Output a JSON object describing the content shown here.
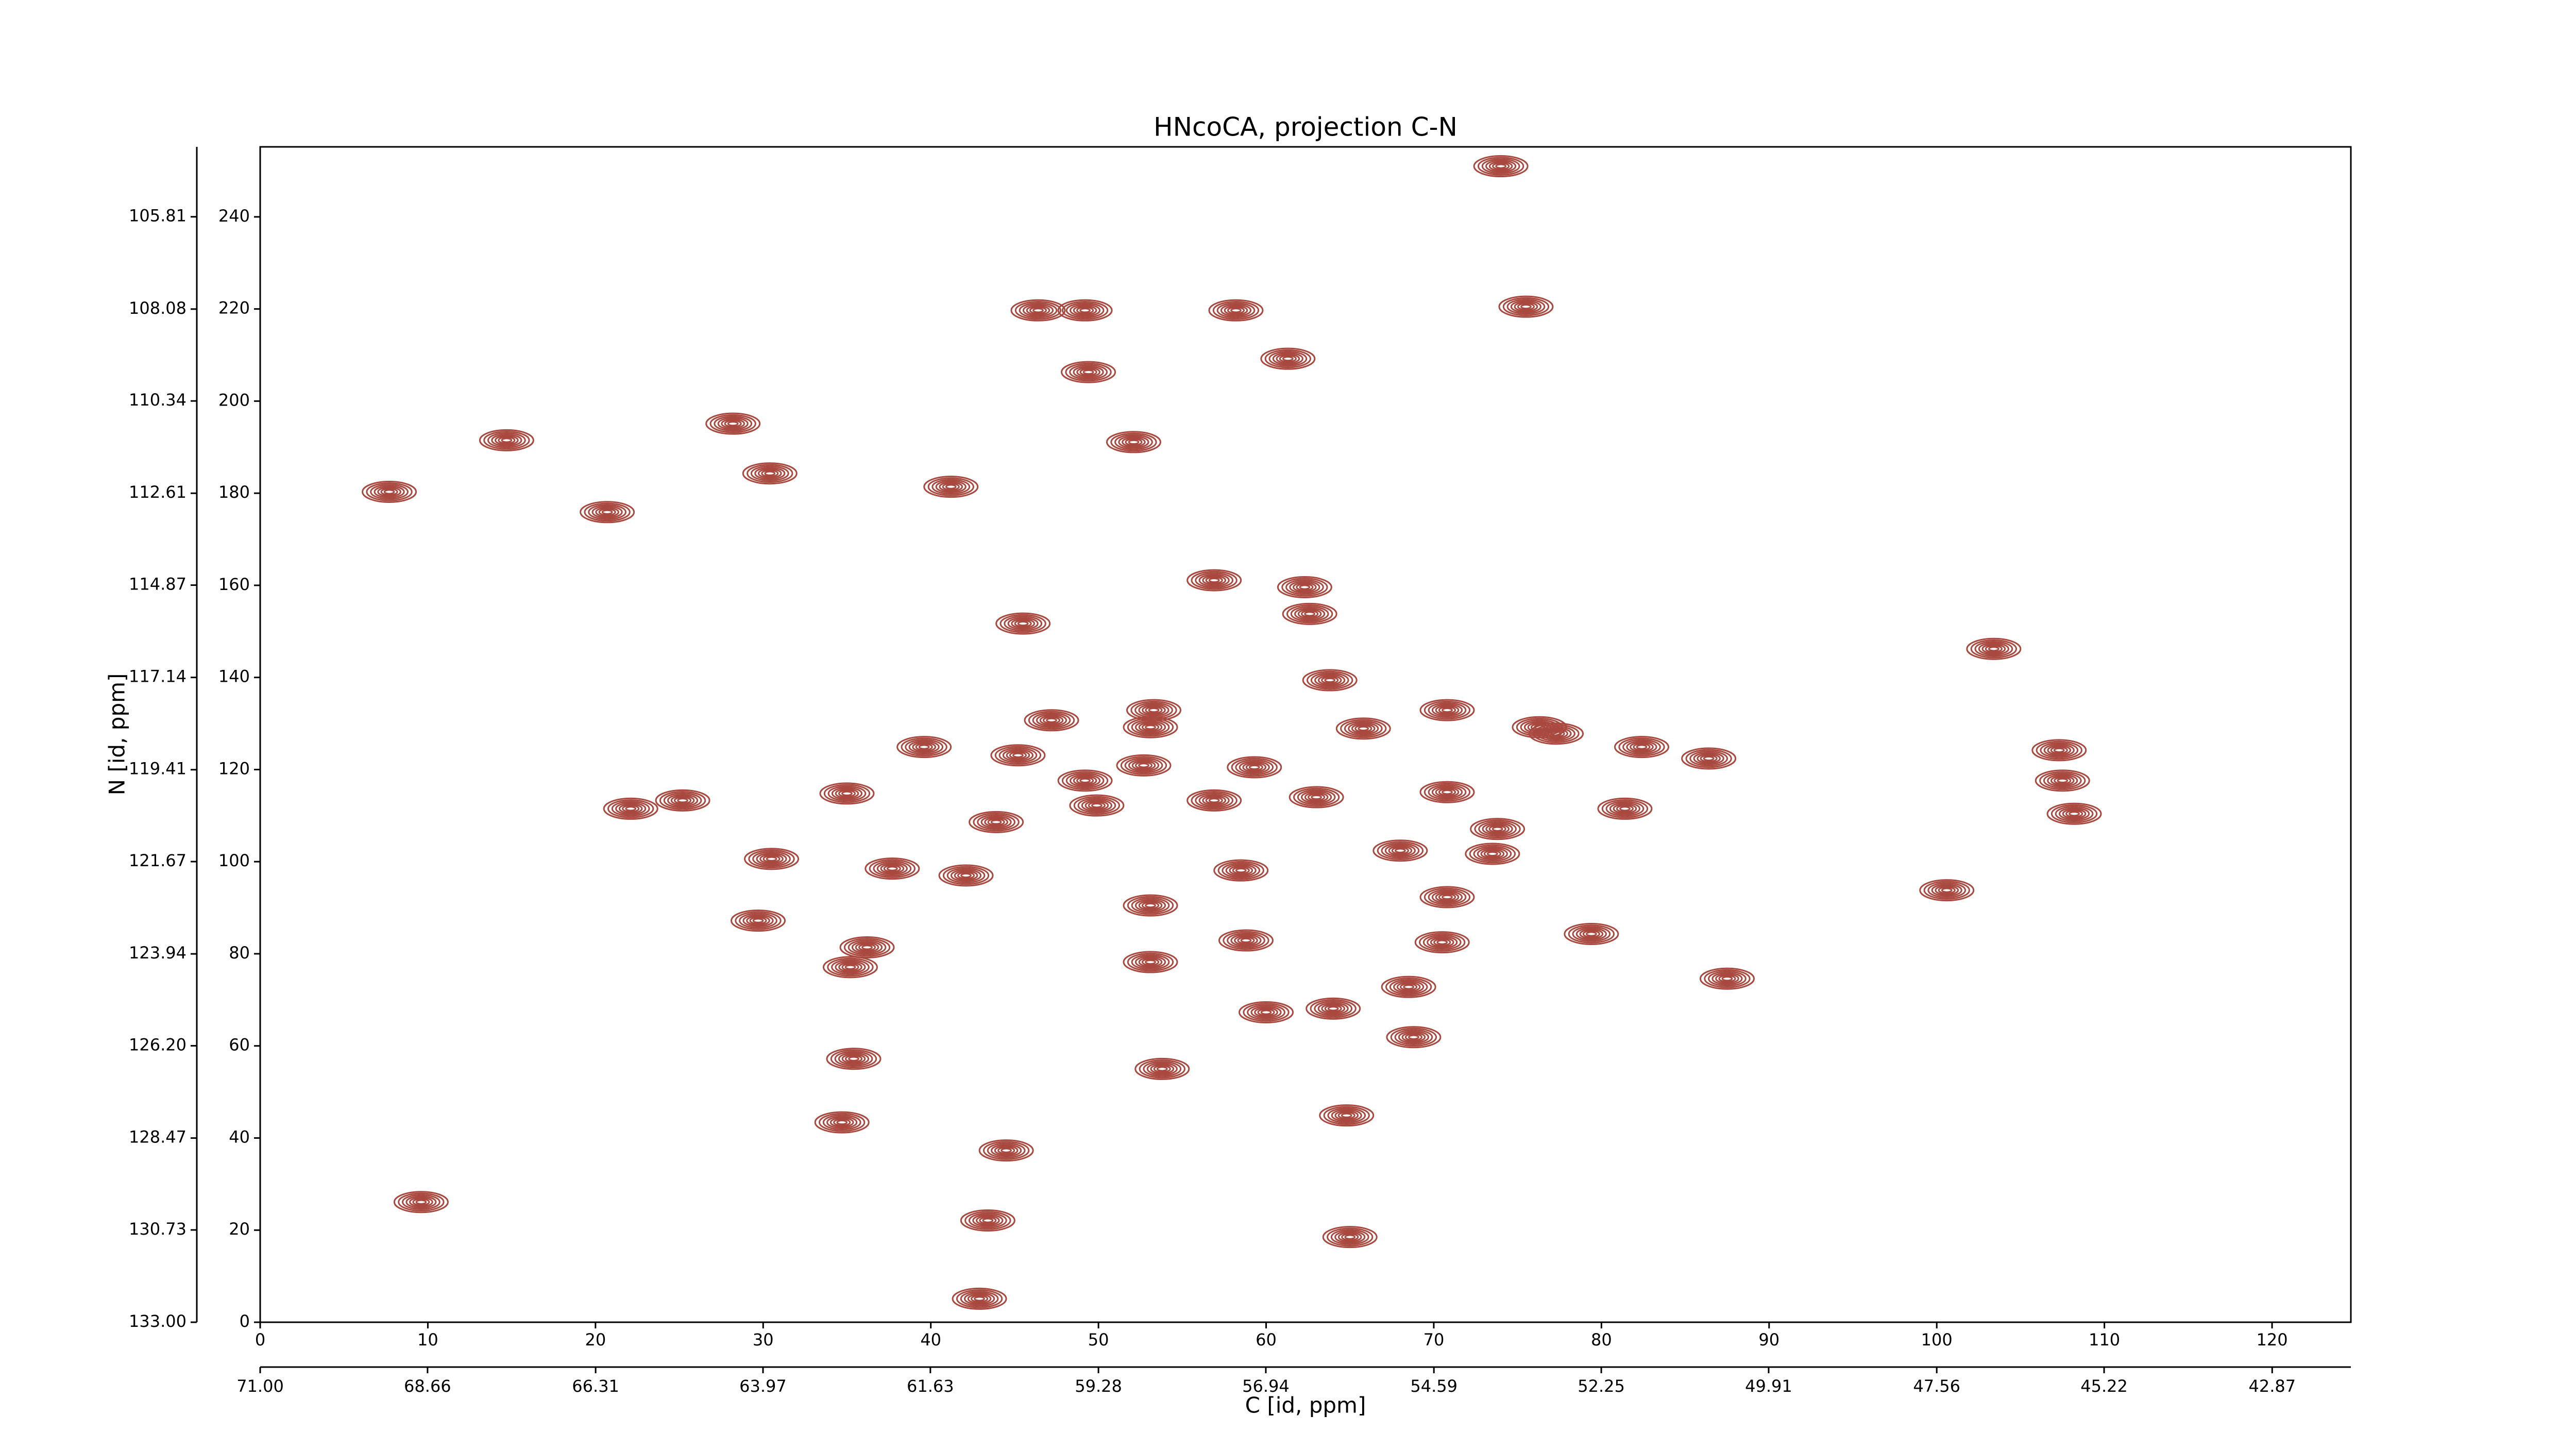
{
  "chart_data": {
    "type": "contour",
    "title": "HNcoCA, projection C-N",
    "xlabel": "C [id, ppm]",
    "ylabel": "N [id, ppm]",
    "xlim": [
      0,
      124.7
    ],
    "xticks": [
      0,
      10,
      20,
      30,
      40,
      50,
      60,
      70,
      80,
      90,
      100,
      110,
      120
    ],
    "ylim": [
      0,
      255.2
    ],
    "yticks": [
      0,
      20,
      40,
      60,
      80,
      100,
      120,
      140,
      160,
      180,
      200,
      220,
      240
    ],
    "x2lim": [
      71.0,
      41.77
    ],
    "x2ticks": [
      {
        "value": 71.0,
        "label": "71.00"
      },
      68.66,
      66.31,
      63.97,
      61.63,
      59.28,
      56.94,
      54.59,
      52.25,
      49.91,
      47.56,
      45.22,
      42.87
    ],
    "y2lim": [
      133.0,
      104.09
    ],
    "y2ticks": [
      {
        "value": 133.0,
        "label": "133.00"
      },
      130.73,
      128.47,
      {
        "value": 126.2,
        "label": "126.20"
      },
      123.94,
      121.67,
      119.41,
      117.14,
      114.87,
      112.61,
      110.34,
      108.08,
      105.81
    ],
    "color": "#a8483e",
    "peaks": {
      "x": [
        74.0,
        46.4,
        49.2,
        58.2,
        75.5,
        61.3,
        49.4,
        52.1,
        14.7,
        28.2,
        30.4,
        7.7,
        20.7,
        41.2,
        56.9,
        62.3,
        62.6,
        45.5,
        63.8,
        103.4,
        47.2,
        53.3,
        53.1,
        65.8,
        70.8,
        76.3,
        77.3,
        82.4,
        86.4,
        39.6,
        45.2,
        59.3,
        52.7,
        49.2,
        107.3,
        107.5,
        108.2,
        25.2,
        22.1,
        35.0,
        43.9,
        49.9,
        56.9,
        63.0,
        70.8,
        73.8,
        81.4,
        30.5,
        37.7,
        42.1,
        58.5,
        68.0,
        73.5,
        100.6,
        29.7,
        53.1,
        70.8,
        36.2,
        35.2,
        53.1,
        58.8,
        70.5,
        79.4,
        87.5,
        68.5,
        60.0,
        64.0,
        68.8,
        35.4,
        53.8,
        34.7,
        44.5,
        64.8,
        43.4,
        65.0,
        42.9,
        9.6
      ],
      "y": [
        251.0,
        219.7,
        219.7,
        219.7,
        220.5,
        209.2,
        206.3,
        191.1,
        191.5,
        195.1,
        184.3,
        180.3,
        175.9,
        181.4,
        161.1,
        159.6,
        153.8,
        151.7,
        139.4,
        146.2,
        130.7,
        132.9,
        129.2,
        128.9,
        132.9,
        129.2,
        127.8,
        124.9,
        122.4,
        124.9,
        123.1,
        120.5,
        120.9,
        117.6,
        124.2,
        117.6,
        110.4,
        113.3,
        111.5,
        114.8,
        108.6,
        112.2,
        113.3,
        114.0,
        115.1,
        107.1,
        111.5,
        100.6,
        98.5,
        97.0,
        98.1,
        102.4,
        101.7,
        93.8,
        87.2,
        90.5,
        92.3,
        81.4,
        77.1,
        78.2,
        82.9,
        82.5,
        84.3,
        74.6,
        72.8,
        67.3,
        68.1,
        61.9,
        57.2,
        55.0,
        43.4,
        37.3,
        44.9,
        22.1,
        18.5,
        5.1,
        26.1
      ]
    }
  }
}
